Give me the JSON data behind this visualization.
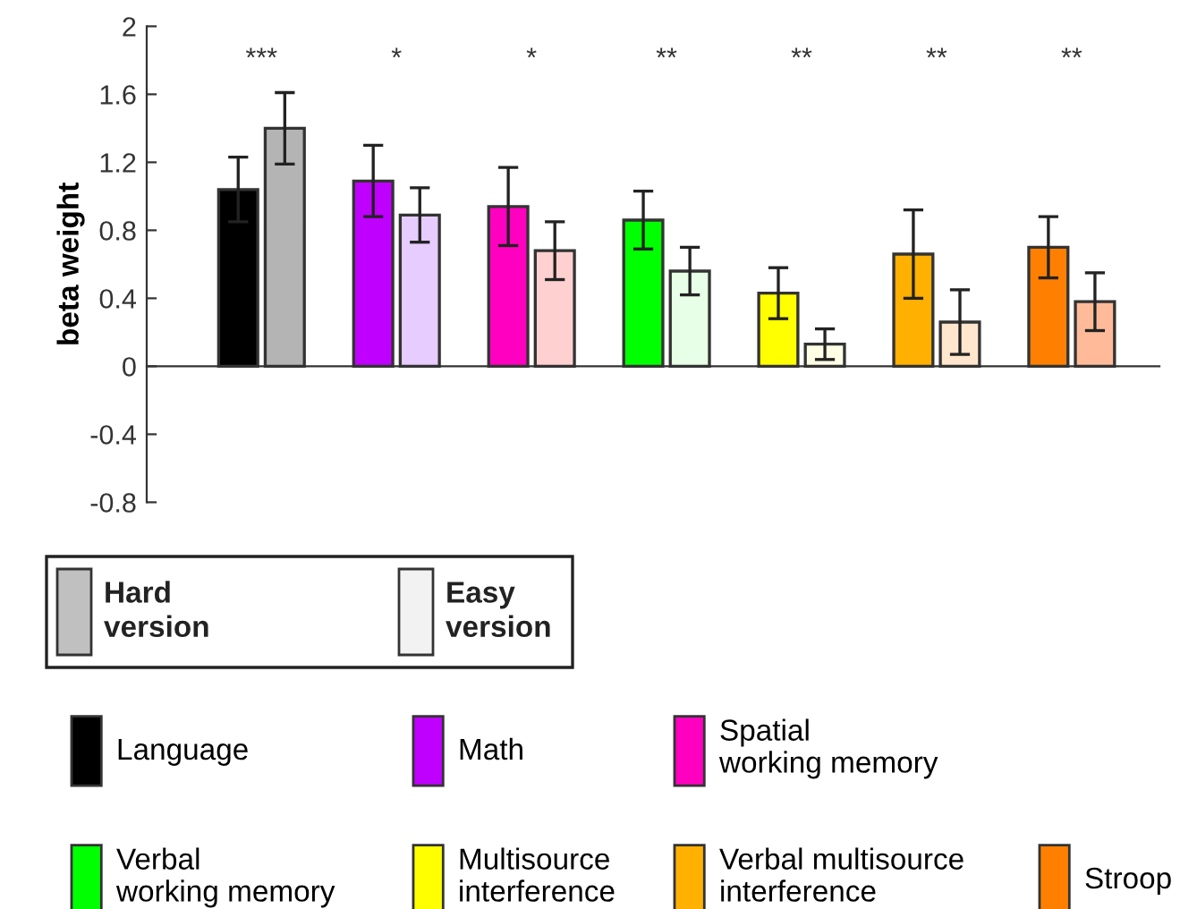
{
  "chart_data": {
    "type": "bar",
    "ylabel": "beta weight",
    "categories": [
      null,
      null,
      null,
      null,
      null,
      null,
      null
    ],
    "series": [
      {
        "name": "Language",
        "color": "#000000",
        "values": [
          1.04,
          null,
          null,
          null,
          null,
          null,
          null
        ],
        "errors": [
          0.19,
          null,
          null,
          null,
          null,
          null,
          null
        ]
      },
      {
        "color": "#b4b4b4",
        "values": [
          1.4,
          null,
          null,
          null,
          null,
          null,
          null
        ],
        "errors": [
          0.21,
          null,
          null,
          null,
          null,
          null,
          null
        ]
      },
      {
        "name": "Math",
        "color": "#c000ff",
        "values": [
          null,
          1.09,
          null,
          null,
          null,
          null,
          null
        ],
        "errors": [
          null,
          0.21,
          null,
          null,
          null,
          null,
          null
        ]
      },
      {
        "color": "#e6ccff",
        "values": [
          null,
          0.89,
          null,
          null,
          null,
          null,
          null
        ],
        "errors": [
          null,
          0.16,
          null,
          null,
          null,
          null,
          null
        ]
      },
      {
        "name": "Spatial\nworking memory",
        "color": "#ff00c0",
        "values": [
          null,
          null,
          0.94,
          null,
          null,
          null,
          null
        ],
        "errors": [
          null,
          null,
          0.23,
          null,
          null,
          null,
          null
        ]
      },
      {
        "color": "#ffd0d0",
        "values": [
          null,
          null,
          0.68,
          null,
          null,
          null,
          null
        ],
        "errors": [
          null,
          null,
          0.17,
          null,
          null,
          null,
          null
        ]
      },
      {
        "name": "Verbal\nworking memory",
        "color": "#00ff00",
        "values": [
          null,
          null,
          null,
          0.86,
          null,
          null,
          null
        ],
        "errors": [
          null,
          null,
          null,
          0.17,
          null,
          null,
          null
        ]
      },
      {
        "color": "#e6ffe6",
        "values": [
          null,
          null,
          null,
          0.56,
          null,
          null,
          null
        ],
        "errors": [
          null,
          null,
          null,
          0.14,
          null,
          null,
          null
        ]
      },
      {
        "name": "Multisource\ninterference",
        "color": "#ffff00",
        "values": [
          null,
          null,
          null,
          null,
          0.43,
          null,
          null
        ],
        "errors": [
          null,
          null,
          null,
          null,
          0.15,
          null,
          null
        ]
      },
      {
        "color": "#ffffe6",
        "values": [
          null,
          null,
          null,
          null,
          0.13,
          null,
          null
        ],
        "errors": [
          null,
          null,
          null,
          null,
          0.09,
          null,
          null
        ]
      },
      {
        "name": "Verbal multisource\ninterference",
        "color": "#ffb000",
        "values": [
          null,
          null,
          null,
          null,
          null,
          0.66,
          null
        ],
        "errors": [
          null,
          null,
          null,
          null,
          null,
          0.26,
          null
        ]
      },
      {
        "color": "#ffe6cc",
        "values": [
          null,
          null,
          null,
          null,
          null,
          0.26,
          null
        ],
        "errors": [
          null,
          null,
          null,
          null,
          null,
          0.19,
          null
        ]
      },
      {
        "name": "Stroop",
        "color": "#ff8000",
        "values": [
          null,
          null,
          null,
          null,
          null,
          null,
          0.7
        ],
        "errors": [
          null,
          null,
          null,
          null,
          null,
          null,
          0.18
        ]
      },
      {
        "color": "#ffbb99",
        "values": [
          null,
          null,
          null,
          null,
          null,
          null,
          0.38
        ],
        "errors": [
          null,
          null,
          null,
          null,
          null,
          null,
          0.17
        ]
      }
    ],
    "ylim": [
      -0.8,
      2
    ],
    "yticks": [
      -0.8,
      -0.4,
      0,
      0.4,
      0.8,
      1.2,
      1.6,
      2
    ],
    "annotations": [
      "***",
      "*",
      "*",
      "**",
      "**",
      "**",
      "**",
      "Hard\nversion",
      "Easy\nversion"
    ],
    "legend": "bottom"
  }
}
